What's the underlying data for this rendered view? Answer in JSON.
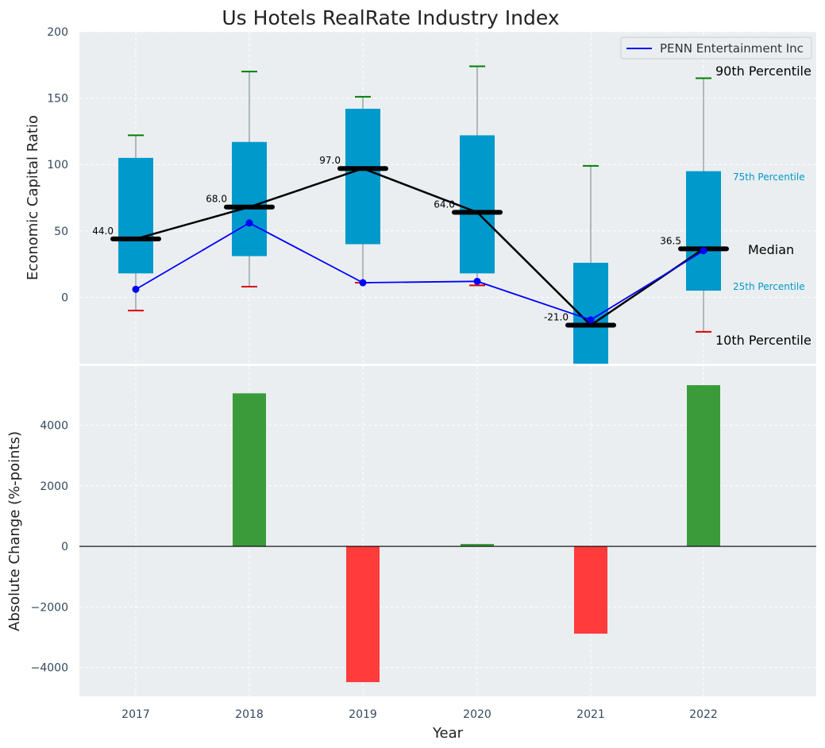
{
  "chart_data": {
    "type": "box",
    "title": "Us Hotels RealRate Industry Index",
    "xlabel": "Year",
    "categories": [
      "2017",
      "2018",
      "2019",
      "2020",
      "2021",
      "2022"
    ],
    "top_panel": {
      "ylabel": "Economic Capital Ratio",
      "ylim": [
        -50,
        200
      ],
      "yticks": [
        "0",
        "50",
        "100",
        "150",
        "200"
      ],
      "p10": [
        -10,
        8,
        11,
        9,
        -50,
        -26
      ],
      "p25": [
        18,
        31,
        40,
        18,
        -50,
        5
      ],
      "median": [
        44.0,
        68.0,
        97.0,
        64.0,
        -21.0,
        36.5
      ],
      "median_labels": [
        "44.0",
        "68.0",
        "97.0",
        "64.0",
        "-21.0",
        "36.5"
      ],
      "p75": [
        105,
        117,
        142,
        122,
        26,
        95
      ],
      "p90": [
        122,
        170,
        151,
        174,
        99,
        165
      ],
      "company_series": {
        "name": "PENN Entertainment Inc",
        "values": [
          6,
          56,
          11,
          12,
          -17,
          35
        ]
      },
      "annotations": {
        "p90": "90th Percentile",
        "p75": "75th Percentile",
        "median": "Median",
        "p25": "25th Percentile",
        "p10": "10th Percentile"
      }
    },
    "bottom_panel": {
      "type": "bar",
      "ylabel": "Absolute Change (%-points)",
      "ylim": [
        -4950,
        5950
      ],
      "yticks": [
        "−4000",
        "−2000",
        "0",
        "2000",
        "4000"
      ],
      "values": [
        0,
        5050,
        -4480,
        80,
        -2880,
        5320
      ]
    },
    "colors": {
      "background": "#eaeef0",
      "box": "#0099cc",
      "median": "#000000",
      "company": "#0000ff",
      "p90_whisker": "#008000",
      "p10_whisker": "#dd0000",
      "positive_bar": "#3b9b3b",
      "negative_bar": "#ff3b3b",
      "axis_text": "#34495e"
    }
  }
}
